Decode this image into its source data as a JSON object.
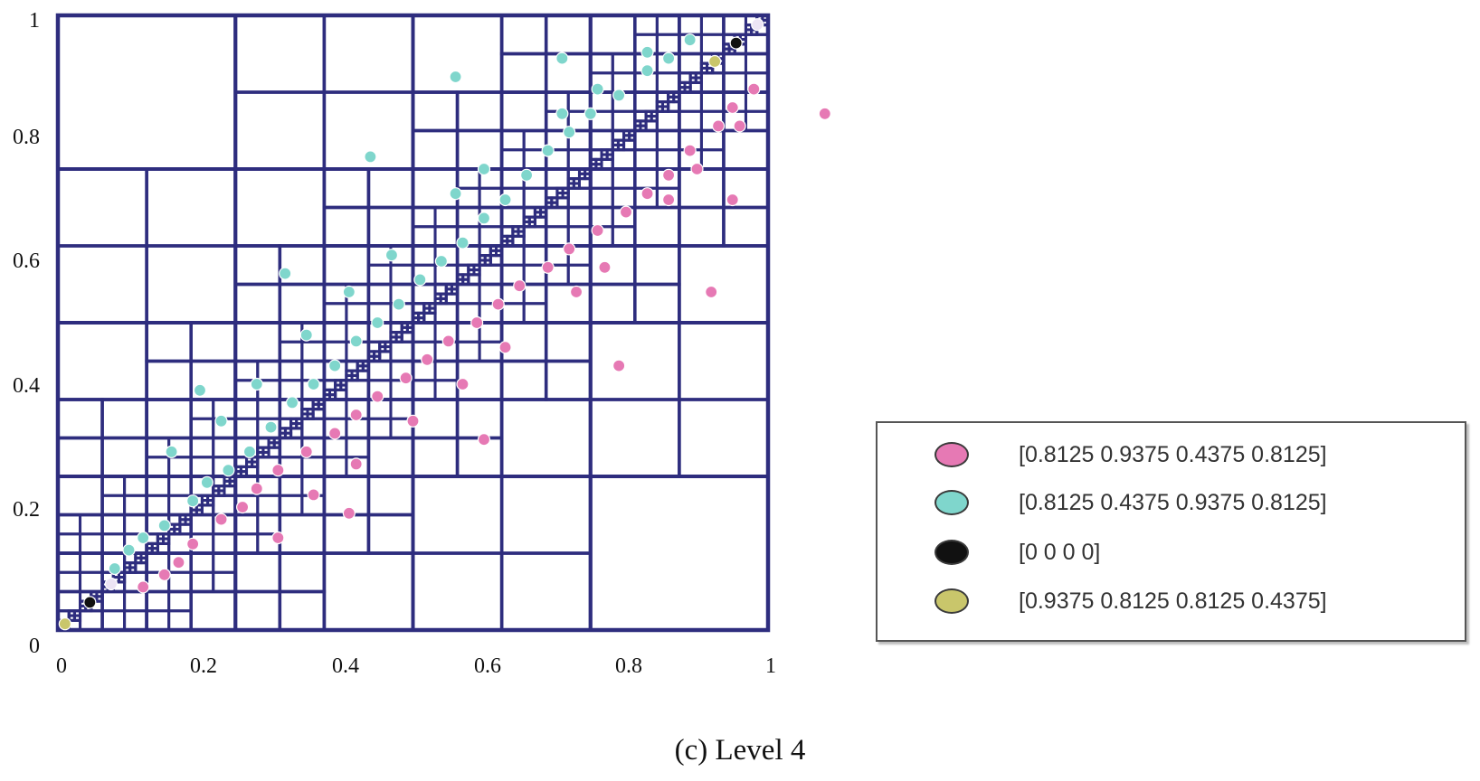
{
  "x_ticks": [
    "0",
    "0.2",
    "0.4",
    "0.6",
    "0.8",
    "1"
  ],
  "y_ticks": [
    "0",
    "0.2",
    "0.4",
    "0.6",
    "0.8",
    "1"
  ],
  "legend": [
    {
      "label": "[0.8125  0.9375  0.4375  0.8125]",
      "color": "#e679b4"
    },
    {
      "label": "[0.8125  0.4375  0.9375  0.8125]",
      "color": "#7fd6cc"
    },
    {
      "label": "[0 0 0 0]",
      "color": "#111111"
    },
    {
      "label": "[0.9375  0.8125  0.8125  0.4375]",
      "color": "#c9c66b"
    }
  ],
  "caption": "(c) Level 4",
  "colors": {
    "grid_line": "#2e2d7e",
    "pink": "#e679b4",
    "teal": "#7fd6cc",
    "black": "#111111",
    "olive": "#c9c66b"
  },
  "plot": {
    "xlim": [
      0,
      1
    ],
    "ylim": [
      0,
      1
    ],
    "grid": "adaptive quadtree refinement along the diagonal (Level 4)"
  }
}
